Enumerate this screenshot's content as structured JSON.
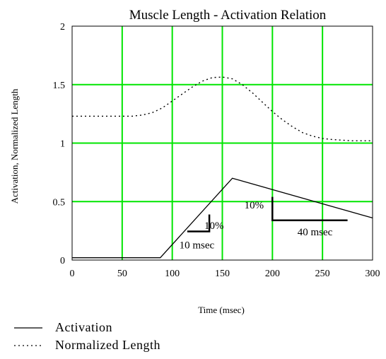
{
  "chart_data": {
    "type": "line",
    "title": "Muscle Length - Activation Relation",
    "xlabel": "Time (msec)",
    "ylabel": "Activation, Normalized Length",
    "xlim": [
      0,
      300
    ],
    "ylim": [
      0,
      2
    ],
    "x_ticks": [
      0,
      50,
      100,
      150,
      200,
      250,
      300
    ],
    "y_ticks": [
      {
        "value": 0,
        "label": "0"
      },
      {
        "value": 0.5,
        "label": "0.5"
      },
      {
        "value": 1,
        "label": "1"
      },
      {
        "value": 1.5,
        "label": "1.5"
      },
      {
        "value": 2,
        "label": "2"
      }
    ],
    "grid": true,
    "grid_color": "#00e600",
    "legend_position": "bottom-left",
    "series": [
      {
        "name": "Activation",
        "style": "solid",
        "color": "#000000",
        "x": [
          0,
          88,
          160,
          300
        ],
        "y": [
          0.02,
          0.02,
          0.7,
          0.36
        ]
      },
      {
        "name": "Normalized Length",
        "style": "dotted",
        "color": "#000000",
        "x": [
          0,
          20,
          40,
          60,
          70,
          80,
          90,
          100,
          110,
          120,
          130,
          140,
          150,
          160,
          170,
          180,
          190,
          200,
          210,
          220,
          230,
          240,
          250,
          260,
          270,
          280,
          290,
          300
        ],
        "y": [
          1.23,
          1.23,
          1.23,
          1.23,
          1.24,
          1.26,
          1.3,
          1.36,
          1.42,
          1.48,
          1.53,
          1.56,
          1.565,
          1.55,
          1.5,
          1.43,
          1.35,
          1.27,
          1.2,
          1.14,
          1.09,
          1.06,
          1.04,
          1.03,
          1.025,
          1.02,
          1.02,
          1.02
        ]
      }
    ],
    "annotations": [
      {
        "text": "10%",
        "text_anchor": [
          132,
          0.265
        ],
        "bracket": [
          [
            115,
            0.245
          ],
          [
            137,
            0.245
          ],
          [
            137,
            0.39
          ]
        ]
      },
      {
        "text": "10 msec",
        "text_anchor": [
          107,
          0.1
        ]
      },
      {
        "text": "10%",
        "text_anchor": [
          172,
          0.44
        ]
      },
      {
        "text": "40 msec",
        "text_anchor": [
          225,
          0.21
        ],
        "bracket": [
          [
            200,
            0.54
          ],
          [
            200,
            0.34
          ],
          [
            275,
            0.34
          ]
        ]
      }
    ]
  }
}
